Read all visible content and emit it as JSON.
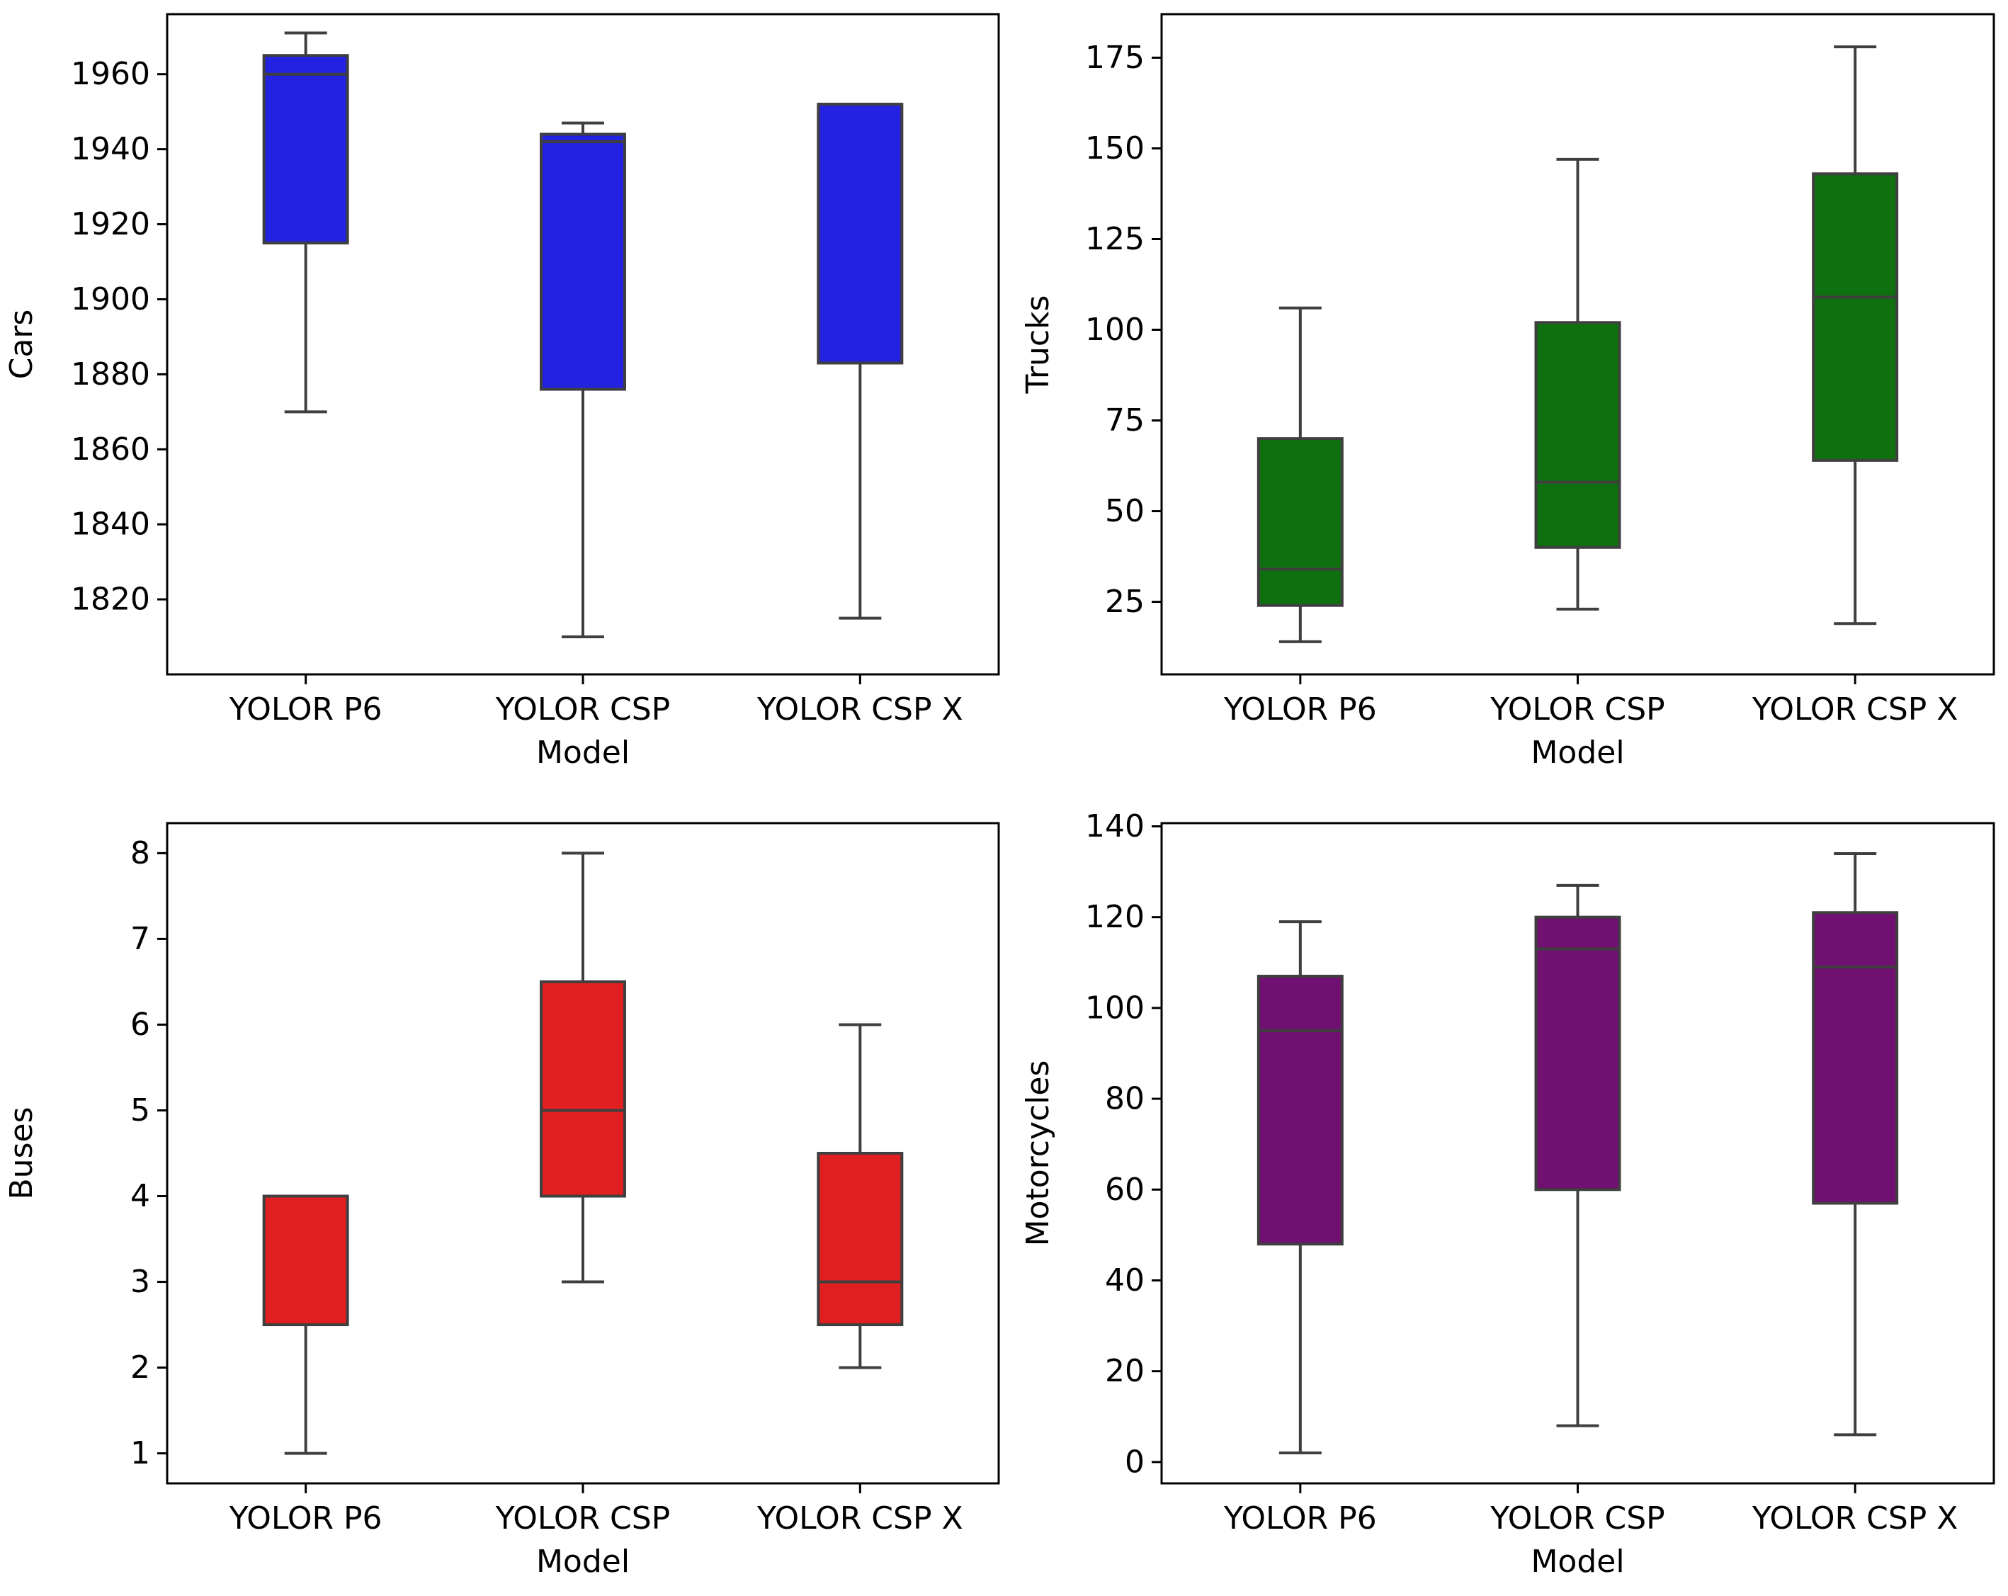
{
  "chart_data": [
    {
      "type": "box",
      "panel": "top-left",
      "title": "",
      "xlabel": "Model",
      "ylabel": "Cars",
      "color": "#2222e0",
      "categories": [
        "YOLOR P6",
        "YOLOR CSP",
        "YOLOR CSP X"
      ],
      "ylim": [
        1800,
        1976
      ],
      "yticks": [
        1820,
        1840,
        1860,
        1880,
        1900,
        1920,
        1940,
        1960
      ],
      "ytick_labels": [
        "1820",
        "1840",
        "1860",
        "1880",
        "1900",
        "1920",
        "1940",
        "1960"
      ],
      "boxes": [
        {
          "whislo": 1870,
          "q1": 1915,
          "med": 1960,
          "q3": 1965,
          "whishi": 1971
        },
        {
          "whislo": 1810,
          "q1": 1876,
          "med": 1942,
          "q3": 1944,
          "whishi": 1947
        },
        {
          "whislo": 1815,
          "q1": 1883,
          "med": 1952,
          "q3": 1952,
          "whishi": 1952
        }
      ]
    },
    {
      "type": "box",
      "panel": "top-right",
      "title": "",
      "xlabel": "Model",
      "ylabel": "Trucks",
      "color": "#0f7010",
      "categories": [
        "YOLOR P6",
        "YOLOR CSP",
        "YOLOR CSP X"
      ],
      "ylim": [
        5,
        187
      ],
      "yticks": [
        25,
        50,
        75,
        100,
        125,
        150,
        175
      ],
      "ytick_labels": [
        "25",
        "50",
        "75",
        "100",
        "125",
        "150",
        "175"
      ],
      "boxes": [
        {
          "whislo": 14,
          "q1": 24,
          "med": 34,
          "q3": 70,
          "whishi": 106
        },
        {
          "whislo": 23,
          "q1": 40,
          "med": 58,
          "q3": 102,
          "whishi": 147
        },
        {
          "whislo": 19,
          "q1": 64,
          "med": 109,
          "q3": 143,
          "whishi": 178
        }
      ]
    },
    {
      "type": "box",
      "panel": "bottom-left",
      "title": "",
      "xlabel": "Model",
      "ylabel": "Buses",
      "color": "#e01f20",
      "categories": [
        "YOLOR P6",
        "YOLOR CSP",
        "YOLOR CSP X"
      ],
      "ylim": [
        0.65,
        8.35
      ],
      "yticks": [
        1,
        2,
        3,
        4,
        5,
        6,
        7,
        8
      ],
      "ytick_labels": [
        "1",
        "2",
        "3",
        "4",
        "5",
        "6",
        "7",
        "8"
      ],
      "boxes": [
        {
          "whislo": 1,
          "q1": 2.5,
          "med": 4,
          "q3": 4,
          "whishi": 4
        },
        {
          "whislo": 3,
          "q1": 4,
          "med": 5,
          "q3": 6.5,
          "whishi": 8
        },
        {
          "whislo": 2,
          "q1": 2.5,
          "med": 3,
          "q3": 4.5,
          "whishi": 6
        }
      ]
    },
    {
      "type": "box",
      "panel": "bottom-right",
      "title": "",
      "xlabel": "Model",
      "ylabel": "Motorcycles",
      "color": "#701070",
      "categories": [
        "YOLOR P6",
        "YOLOR CSP",
        "YOLOR CSP X"
      ],
      "ylim": [
        -4.7,
        140.7
      ],
      "yticks": [
        0,
        20,
        40,
        60,
        80,
        100,
        120,
        140
      ],
      "ytick_labels": [
        "0",
        "20",
        "40",
        "60",
        "80",
        "100",
        "120",
        "140"
      ],
      "boxes": [
        {
          "whislo": 2,
          "q1": 48,
          "med": 95,
          "q3": 107,
          "whishi": 119
        },
        {
          "whislo": 8,
          "q1": 60,
          "med": 113,
          "q3": 120,
          "whishi": 127
        },
        {
          "whislo": 6,
          "q1": 57,
          "med": 109,
          "q3": 121,
          "whishi": 134
        }
      ]
    }
  ]
}
